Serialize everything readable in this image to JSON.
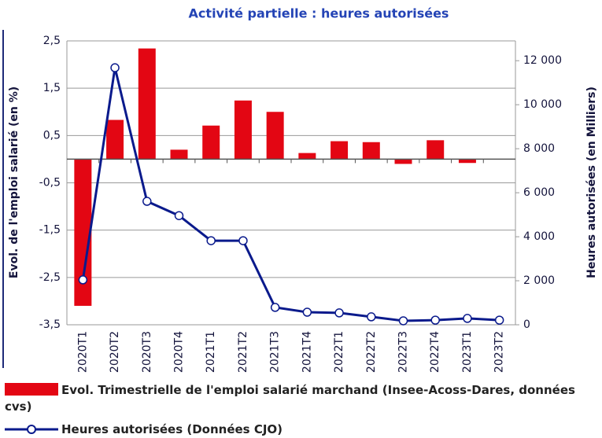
{
  "chart_data": {
    "type": "bar-line",
    "title": "Activité partielle : heures autorisées",
    "y_label": "Evol. de l'emploi salarié (en %)",
    "y2_label": "Heures autorisées (en Milliers)",
    "categories": [
      "2020T1",
      "2020T2",
      "2020T3",
      "2020T4",
      "2021T1",
      "2021T2",
      "2021T3",
      "2021T4",
      "2022T1",
      "2022T2",
      "2022T3",
      "2022T4",
      "2023T1",
      "2023T2"
    ],
    "series": [
      {
        "name": "Evol. Trimestrielle de l'emploi salarié marchand (Insee-Acoss-Dares, données cvs)",
        "type": "bar",
        "color": "#e30613",
        "values": [
          -3.1,
          0.83,
          2.34,
          0.2,
          0.71,
          1.24,
          1.0,
          0.13,
          0.38,
          0.36,
          -0.1,
          0.4,
          -0.08,
          0
        ]
      },
      {
        "name": "Heures autorisées (Données CJO)",
        "type": "line",
        "color": "#0a1a8c",
        "axis": "y2",
        "values": [
          2040,
          11680,
          5610,
          4960,
          3820,
          3820,
          790,
          570,
          540,
          360,
          180,
          210,
          290,
          210
        ]
      }
    ],
    "ylim": [
      -3.5,
      2.5
    ],
    "yticks": [
      {
        "value": 2.5,
        "label": "2,5"
      },
      {
        "value": 1.5,
        "label": "1,5"
      },
      {
        "value": 0.5,
        "label": "0,5"
      },
      {
        "value": -0.5,
        "label": "-0,5"
      },
      {
        "value": -1.5,
        "label": "-1,5"
      },
      {
        "value": -2.5,
        "label": "-2,5"
      },
      {
        "value": -3.5,
        "label": "-3,5"
      }
    ],
    "y2lim": [
      0,
      12900
    ],
    "y2ticks": [
      {
        "value": 12000,
        "label": "12 000"
      },
      {
        "value": 10000,
        "label": "10 000"
      },
      {
        "value": 8000,
        "label": "8 000"
      },
      {
        "value": 6000,
        "label": "6 000"
      },
      {
        "value": 4000,
        "label": "4 000"
      },
      {
        "value": 2000,
        "label": "2 000"
      },
      0
    ],
    "grid": true
  }
}
